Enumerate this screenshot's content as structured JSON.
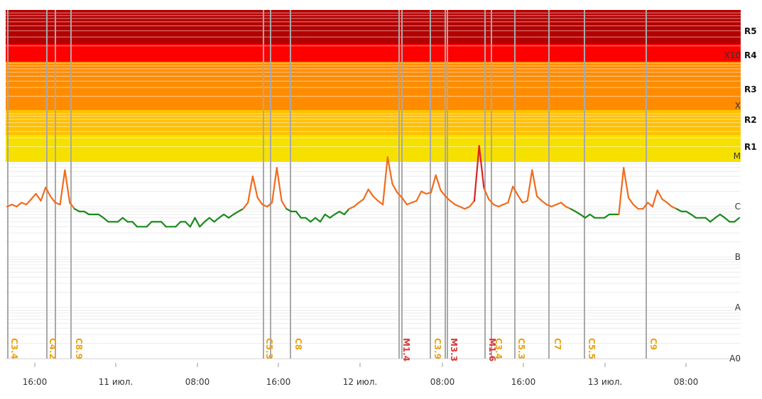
{
  "chart_data": {
    "type": "line",
    "title": "",
    "xlabel": "",
    "ylabel": "",
    "x_ticks": [
      "16:00",
      "11 июл.",
      "08:00",
      "16:00",
      "12 июл.",
      "08:00",
      "16:00",
      "13 июл.",
      "08:00"
    ],
    "class_labels": [
      "A0",
      "A",
      "B",
      "C",
      "M",
      "X",
      "X10"
    ],
    "radio_labels": [
      "R1",
      "R2",
      "R3",
      "R4",
      "R5"
    ],
    "y_scale": "log",
    "ylim_class": [
      "A0",
      "X10+"
    ],
    "series": [
      {
        "values_class": [
          "C1.0",
          "C1.1",
          "C1.0",
          "C1.2",
          "C1.1",
          "C1.4",
          "C1.8",
          "C1.3",
          "C2.4",
          "C1.6",
          "C1.2",
          "C1.1",
          "C5.3",
          "C1.2",
          "B9",
          "B8",
          "B8",
          "B7",
          "B7",
          "B7",
          "B6",
          "B5",
          "B5",
          "B5",
          "B6",
          "B5",
          "B5",
          "B4",
          "B4",
          "B4",
          "B5",
          "B5",
          "B5",
          "B4",
          "B4",
          "B4",
          "B5",
          "B5",
          "B4",
          "B6",
          "B4",
          "B5",
          "B6",
          "B5",
          "B6",
          "B7",
          "B6",
          "B7",
          "B8",
          "B9",
          "C1.2",
          "C4.0",
          "C1.5",
          "C1.1",
          "C1.0",
          "C1.2",
          "C5.9",
          "C1.3",
          "B9",
          "B8",
          "B8",
          "B6",
          "B6",
          "B5",
          "B6",
          "B5",
          "B7",
          "B6",
          "B7",
          "B8",
          "B7",
          "B9",
          "C1.0",
          "C1.2",
          "C1.4",
          "C2.2",
          "C1.6",
          "C1.3",
          "C1.1",
          "C9.6",
          "C2.8",
          "C1.9",
          "C1.5",
          "C1.1",
          "C1.2",
          "C1.3",
          "C2.0",
          "C1.8",
          "C1.9",
          "C4.2",
          "C2.1",
          "C1.6",
          "C1.3",
          "C1.1",
          "C1.0",
          "B9",
          "C1.0",
          "C1.3",
          "M1.6",
          "C2.3",
          "C1.4",
          "C1.1",
          "C1.0",
          "C1.1",
          "C1.2",
          "C2.5",
          "C1.7",
          "C1.2",
          "C1.3",
          "C5.3",
          "C1.6",
          "C1.3",
          "C1.1",
          "C1.0",
          "C1.1",
          "C1.2",
          "C1.0",
          "B9",
          "B8",
          "B7",
          "B6",
          "B7",
          "B6",
          "B6",
          "B6",
          "B7",
          "B7",
          "B7",
          "C5.9",
          "C1.5",
          "C1.1",
          "B9",
          "B9",
          "C1.2",
          "C1.0",
          "C2.1",
          "C1.4",
          "C1.2",
          "C1.0",
          "B9",
          "B8",
          "B8",
          "B7",
          "B6",
          "B6",
          "B6",
          "B5",
          "B6",
          "B7",
          "B6",
          "B5",
          "B5",
          "B6"
        ]
      }
    ],
    "flares": [
      "C3.4",
      "C4.2",
      "C8.9",
      "C5.3",
      "C8",
      "M1.4",
      "C3.9",
      "M3.3",
      "M1.6",
      "C3.4",
      "C5.3",
      "C7",
      "C5.5",
      "C9"
    ],
    "colors": {
      "band_R5": "#b30000",
      "band_R4": "#ff0000",
      "band_R3": "#ff8c00",
      "band_R2": "#ffc000",
      "band_R1": "#f5e000",
      "line_C": "#f26b1d",
      "line_B": "#1b8a1b",
      "line_M": "#e0202a",
      "flare_C": "#e8a317",
      "flare_M": "#d93a3a",
      "flare_line": "#a9a9a9",
      "grid": "#ececec",
      "label_text": "#333333"
    }
  }
}
